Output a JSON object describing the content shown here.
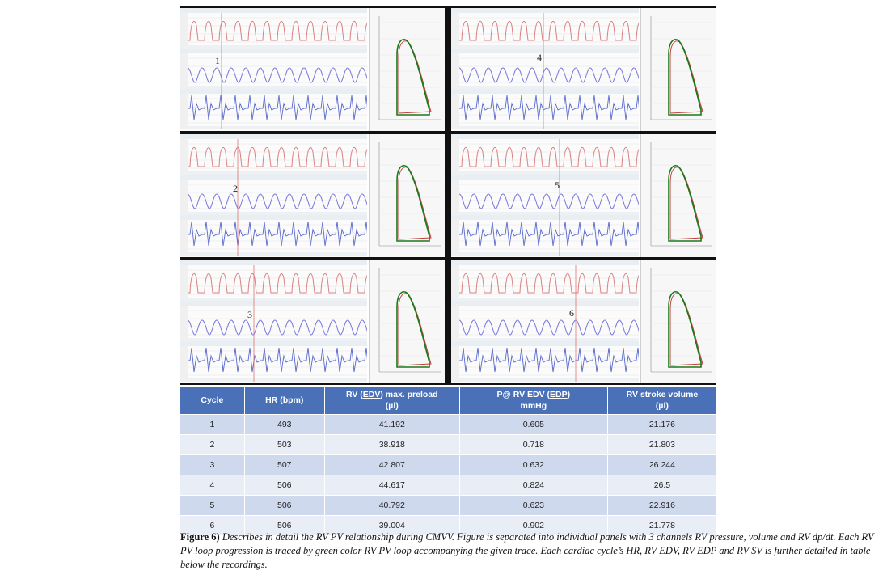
{
  "panels": [
    {
      "number": "1"
    },
    {
      "number": "4"
    },
    {
      "number": "2"
    },
    {
      "number": "5"
    },
    {
      "number": "3"
    },
    {
      "number": "6"
    }
  ],
  "colors": {
    "pressure_trace": "#d98080",
    "volume_trace": "#7777dd",
    "dpdt_trace": "#5566cc",
    "loop_green": "#1a7a1a",
    "loop_red": "#c04040",
    "table_header": "#4a71b8",
    "table_row_odd": "#cfd9ee",
    "table_row_even": "#e8edf6"
  },
  "table": {
    "headers": {
      "cycle": "Cycle",
      "hr": "HR (bpm)",
      "edv_prefix": "RV (",
      "edv_u": "EDV",
      "edv_suffix": ") max. preload",
      "edv_unit": "(µl)",
      "edp_prefix": "P@ RV EDV (",
      "edp_u": "EDP",
      "edp_suffix": ")",
      "edp_unit": "mmHg",
      "sv_line1": "RV stroke volume",
      "sv_unit": "(µl)"
    },
    "rows": [
      {
        "cycle": "1",
        "hr": "493",
        "edv": "41.192",
        "edp": "0.605",
        "sv": "21.176"
      },
      {
        "cycle": "2",
        "hr": "503",
        "edv": "38.918",
        "edp": "0.718",
        "sv": "21.803"
      },
      {
        "cycle": "3",
        "hr": "507",
        "edv": "42.807",
        "edp": "0.632",
        "sv": "26.244"
      },
      {
        "cycle": "4",
        "hr": "506",
        "edv": "44.617",
        "edp": "0.824",
        "sv": "26.5"
      },
      {
        "cycle": "5",
        "hr": "506",
        "edv": "40.792",
        "edp": "0.623",
        "sv": "22.916"
      },
      {
        "cycle": "6",
        "hr": "506",
        "edv": "39.004",
        "edp": "0.902",
        "sv": "21.778"
      }
    ]
  },
  "caption": {
    "label": "Figure 6)",
    "text": " Describes in detail the RV PV relationship during CMVV. Figure is separated into individual panels with 3 channels RV pressure, volume and RV dp/dt. Each RV PV loop progression is traced by green color RV PV loop accompanying the given trace. Each cardiac cycle’s HR, RV EDV, RV EDP and RV SV is further detailed in table below the recordings."
  }
}
